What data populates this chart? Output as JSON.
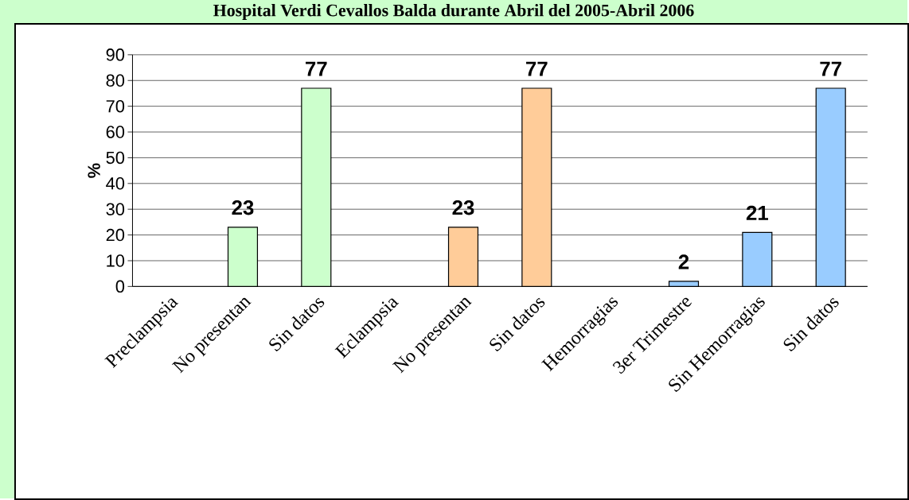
{
  "chart_data": {
    "type": "bar",
    "title": "Hospital Verdi Cevallos Balda durante Abril del 2005-Abril 2006",
    "ylabel": "%",
    "categories": [
      "Preclampsia",
      "No presentan",
      "Sin datos",
      "Eclampsia",
      "No presentan",
      "Sin datos",
      "Hemorragias",
      "3er Trimestre",
      "Sin Hemorragias",
      "Sin datos"
    ],
    "values": [
      null,
      23,
      77,
      null,
      23,
      77,
      null,
      2,
      21,
      77
    ],
    "colors": [
      "#ccffcc",
      "#ccffcc",
      "#ccffcc",
      "#ffcc99",
      "#ffcc99",
      "#ffcc99",
      "#99ccff",
      "#99ccff",
      "#99ccff",
      "#99ccff"
    ],
    "ylim": [
      0,
      90
    ],
    "yticks": [
      0,
      10,
      20,
      30,
      40,
      50,
      60,
      70,
      80,
      90
    ],
    "grid": "y",
    "data_labels": true
  }
}
